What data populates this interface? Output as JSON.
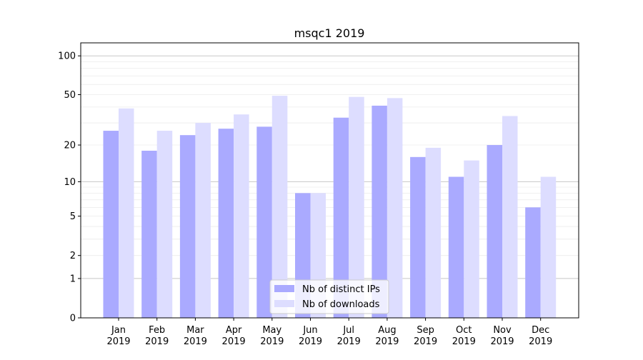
{
  "chart_data": {
    "type": "bar",
    "title": "msqc1 2019",
    "xlabel": "",
    "ylabel": "",
    "yscale": "log10(v+1)",
    "ylim": [
      0,
      126
    ],
    "yticks": [
      0,
      1,
      2,
      5,
      10,
      20,
      50,
      100
    ],
    "ytick_labels": [
      "0",
      "1",
      "2",
      "5",
      "10",
      "20",
      "50",
      "100"
    ],
    "major_grid": [
      1,
      10,
      100
    ],
    "minor_grid": [
      2,
      3,
      4,
      5,
      6,
      7,
      8,
      9,
      20,
      30,
      40,
      50,
      60,
      70,
      80,
      90
    ],
    "grid": true,
    "legend_position": "bottom-center",
    "categories": [
      {
        "month": "Jan",
        "year": "2019"
      },
      {
        "month": "Feb",
        "year": "2019"
      },
      {
        "month": "Mar",
        "year": "2019"
      },
      {
        "month": "Apr",
        "year": "2019"
      },
      {
        "month": "May",
        "year": "2019"
      },
      {
        "month": "Jun",
        "year": "2019"
      },
      {
        "month": "Jul",
        "year": "2019"
      },
      {
        "month": "Aug",
        "year": "2019"
      },
      {
        "month": "Sep",
        "year": "2019"
      },
      {
        "month": "Oct",
        "year": "2019"
      },
      {
        "month": "Nov",
        "year": "2019"
      },
      {
        "month": "Dec",
        "year": "2019"
      }
    ],
    "series": [
      {
        "name": "Nb of distinct IPs",
        "color": "#aaaaff",
        "values": [
          26,
          18,
          24,
          27,
          28,
          8,
          33,
          41,
          16,
          11,
          20,
          6
        ]
      },
      {
        "name": "Nb of downloads",
        "color": "#ddddff",
        "values": [
          39,
          26,
          30,
          35,
          49,
          8,
          48,
          47,
          19,
          15,
          34,
          11
        ]
      }
    ]
  }
}
